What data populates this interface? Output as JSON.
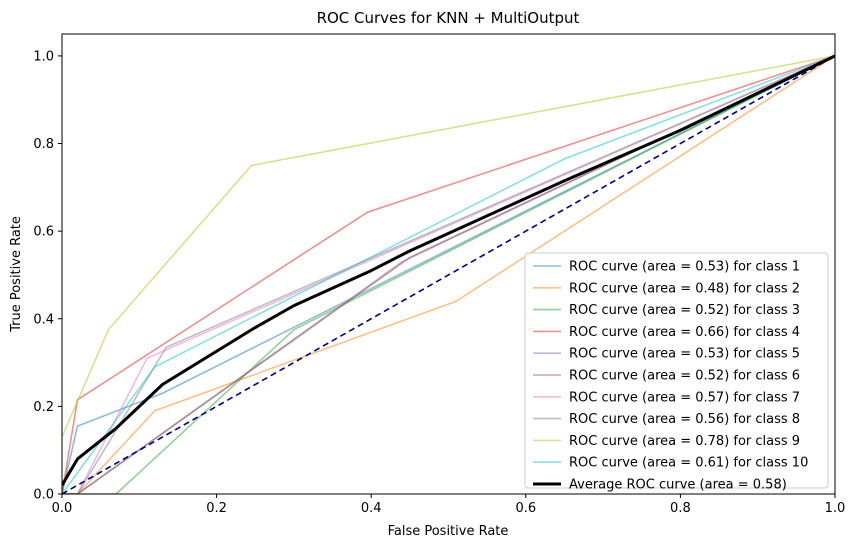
{
  "chart_data": {
    "type": "line",
    "title": "ROC Curves for KNN + MultiOutput",
    "xlabel": "False Positive Rate",
    "ylabel": "True Positive Rate",
    "xlim": [
      0.0,
      1.0
    ],
    "ylim": [
      0.0,
      1.05
    ],
    "xticks": [
      "0.0",
      "0.2",
      "0.4",
      "0.6",
      "0.8",
      "1.0"
    ],
    "yticks": [
      "0.0",
      "0.2",
      "0.4",
      "0.6",
      "0.8",
      "1.0"
    ],
    "legend_position": "lower-right",
    "grid": false,
    "diagonal": {
      "x": [
        0,
        1
      ],
      "y": [
        0,
        1
      ],
      "color": "#000080",
      "style": "dashed"
    },
    "series": [
      {
        "name": "ROC curve (area = 0.53) for class 1",
        "color": "#1f77b4",
        "x": [
          0,
          0.02,
          0.13,
          1.0
        ],
        "y": [
          0,
          0.155,
          0.23,
          1.0
        ]
      },
      {
        "name": "ROC curve (area = 0.48) for class 2",
        "color": "#ff7f0e",
        "x": [
          0,
          0.02,
          0.12,
          0.51,
          1.0
        ],
        "y": [
          0,
          0.0,
          0.19,
          0.44,
          1.0
        ]
      },
      {
        "name": "ROC curve (area = 0.52) for class 3",
        "color": "#2ca02c",
        "x": [
          0,
          0.07,
          0.3,
          1.0
        ],
        "y": [
          0,
          0.0,
          0.375,
          1.0
        ]
      },
      {
        "name": "ROC curve (area = 0.66) for class 4",
        "color": "#d62728",
        "x": [
          0,
          0.02,
          0.395,
          1.0
        ],
        "y": [
          0,
          0.215,
          0.643,
          1.0
        ]
      },
      {
        "name": "ROC curve (area = 0.53) for class 5",
        "color": "#9467bd",
        "x": [
          0,
          0.02,
          0.44,
          1.0
        ],
        "y": [
          0,
          0.0,
          0.53,
          1.0
        ]
      },
      {
        "name": "ROC curve (area = 0.52) for class 6",
        "color": "#8c564b",
        "x": [
          0,
          0.02,
          0.45,
          1.0
        ],
        "y": [
          0,
          0.0,
          0.54,
          1.0
        ]
      },
      {
        "name": "ROC curve (area = 0.57) for class 7",
        "color": "#e377c2",
        "x": [
          0,
          0.02,
          0.11,
          1.0
        ],
        "y": [
          0,
          0.0,
          0.31,
          1.0
        ]
      },
      {
        "name": "ROC curve (area = 0.56) for class 8",
        "color": "#7f7f7f",
        "x": [
          0,
          0.02,
          0.135,
          1.0
        ],
        "y": [
          0,
          0.0,
          0.335,
          1.0
        ]
      },
      {
        "name": "ROC curve (area = 0.78) for class 9",
        "color": "#bcbd22",
        "x": [
          0,
          0.06,
          0.245,
          1.0
        ],
        "y": [
          0.13,
          0.375,
          0.75,
          1.0
        ]
      },
      {
        "name": "ROC curve (area = 0.61) for class 10",
        "color": "#17becf",
        "x": [
          0,
          0.12,
          0.65,
          1.0
        ],
        "y": [
          0,
          0.29,
          0.765,
          1.0
        ]
      },
      {
        "name": "Average ROC curve (area = 0.58)",
        "color": "#000000",
        "emphasis": true,
        "x": [
          0,
          0.02,
          0.07,
          0.13,
          0.25,
          0.3,
          0.4,
          0.45,
          0.5,
          0.65,
          0.8,
          1.0
        ],
        "y": [
          0.02,
          0.08,
          0.15,
          0.25,
          0.38,
          0.43,
          0.51,
          0.555,
          0.595,
          0.715,
          0.83,
          1.0
        ]
      }
    ]
  }
}
